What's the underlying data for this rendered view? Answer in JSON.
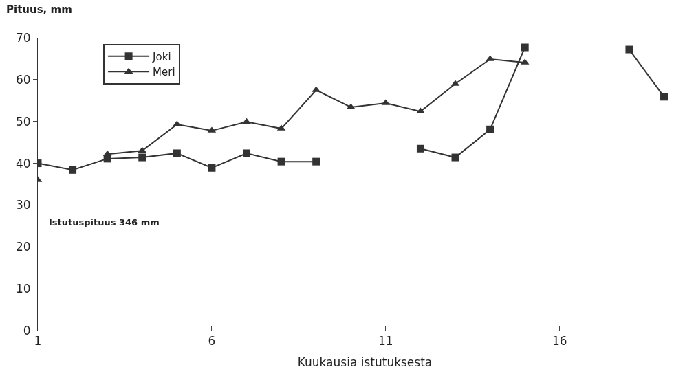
{
  "chart_data": {
    "type": "line",
    "ylabel": "Pituus, mm",
    "xlabel": "Kuukausia istutuksesta",
    "x": [
      1,
      2,
      3,
      4,
      5,
      6,
      7,
      8,
      9,
      10,
      11,
      12,
      13,
      14,
      15,
      16,
      17,
      18,
      19
    ],
    "series": [
      {
        "name": "Joki",
        "color": "#333333",
        "marker": "square",
        "values": [
          40,
          38.4,
          41.1,
          41.4,
          42.4,
          38.9,
          42.4,
          40.4,
          40.4,
          null,
          null,
          43.5,
          41.4,
          48.1,
          67.7,
          null,
          null,
          67.2,
          55.9
        ]
      },
      {
        "name": "Meri",
        "color": "#333333",
        "marker": "triangle",
        "values": [
          36,
          null,
          42.2,
          43,
          49.3,
          47.8,
          49.9,
          48.3,
          57.5,
          53.4,
          54.4,
          52.4,
          59,
          64.9,
          64.1,
          null,
          null,
          null,
          null
        ]
      }
    ],
    "xlim": [
      1,
      19.8
    ],
    "xticks": [
      1,
      6,
      11,
      16
    ],
    "ylim": [
      0,
      70
    ],
    "yticks": [
      0,
      10,
      20,
      30,
      40,
      50,
      60,
      70
    ],
    "legend": "top left",
    "line_style": "solid",
    "annotations": [
      "Istutuspituus 346 mm"
    ]
  }
}
